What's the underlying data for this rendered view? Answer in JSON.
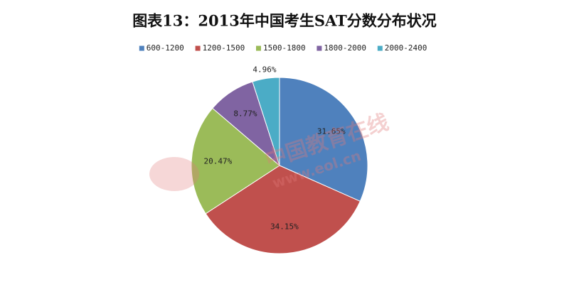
{
  "chart_data": {
    "type": "pie",
    "title": "图表13：2013年中国考生SAT分数分布状况",
    "categories": [
      "600-1200",
      "1200-1500",
      "1500-1800",
      "1800-2000",
      "2000-2400"
    ],
    "values": [
      31.65,
      34.15,
      20.47,
      8.77,
      4.96
    ],
    "value_labels": [
      "31.65%",
      "34.15%",
      "20.47%",
      "8.77%",
      "4.96%"
    ],
    "colors": [
      "#4f81bd",
      "#c0504d",
      "#9bbb59",
      "#8064a2",
      "#4bacc6"
    ],
    "legend": "top",
    "watermark": [
      "中国教育在线",
      "www.eol.cn"
    ]
  }
}
